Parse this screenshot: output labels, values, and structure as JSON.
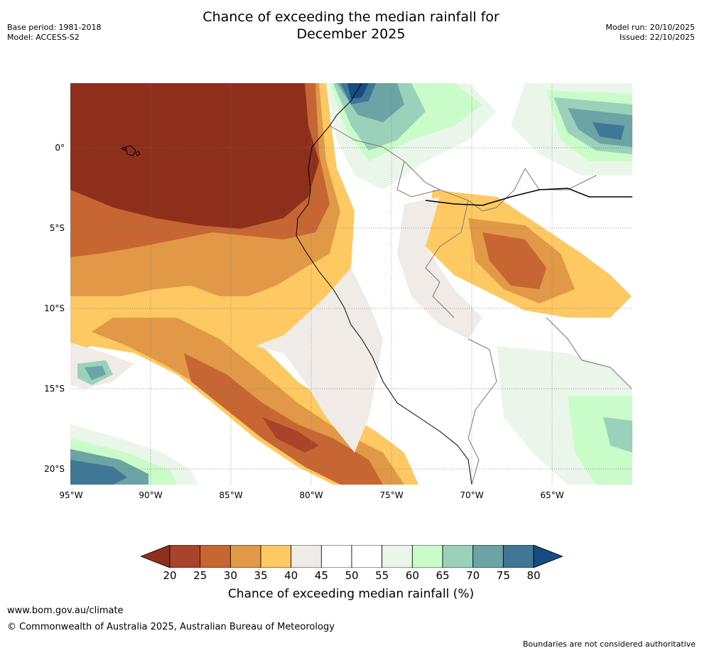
{
  "title_line1": "Chance of exceeding the median rainfall for",
  "title_line2": "December 2025",
  "meta": {
    "base_period": "Base period: 1981-2018",
    "model": "Model: ACCESS-S2",
    "model_run": "Model run: 20/10/2025",
    "issued": "Issued: 22/10/2025"
  },
  "lat_labels": [
    "0°",
    "5°S",
    "10°S",
    "15°S",
    "20°S"
  ],
  "lon_labels": [
    "95°W",
    "90°W",
    "85°W",
    "80°W",
    "75°W",
    "70°W",
    "65°W"
  ],
  "colorbar": {
    "ticks": [
      "20",
      "25",
      "30",
      "35",
      "40",
      "45",
      "50",
      "55",
      "60",
      "65",
      "70",
      "75",
      "80"
    ],
    "colors": [
      "#8e2f1c",
      "#a9432a",
      "#c76633",
      "#e19847",
      "#fec862",
      "#f0ebe6",
      "#ffffff",
      "#ffffff",
      "#e9f6e9",
      "#c9fcc9",
      "#9ad1bb",
      "#6ca3a4",
      "#407696",
      "#174b82"
    ],
    "label": "Chance of exceeding median rainfall (%)"
  },
  "footer": {
    "url": "www.bom.gov.au/climate",
    "copyright": "© Commonwealth of Australia 2025, Australian Bureau of Meteorology",
    "note": "Boundaries are not considered authoritative"
  }
}
